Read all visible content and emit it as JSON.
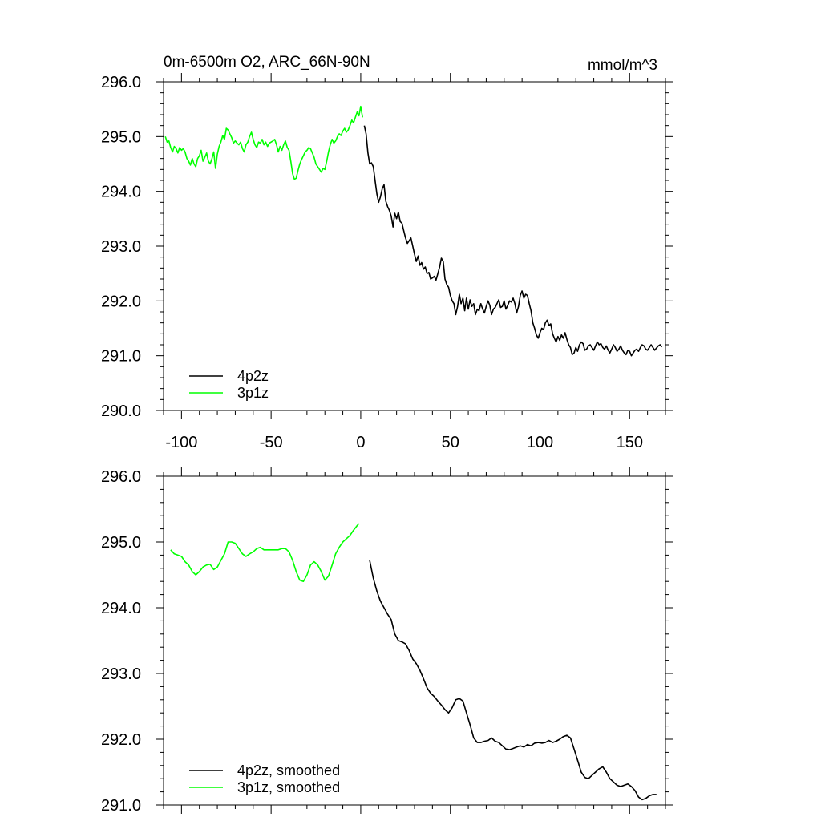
{
  "chart_data": [
    {
      "type": "line",
      "title": "0m-6500m O2, ARC_66N-90N",
      "units": "mmol/m^3",
      "xlim": [
        -110,
        170
      ],
      "ylim": [
        290,
        296
      ],
      "xticks": [
        -100,
        -50,
        0,
        50,
        100,
        150
      ],
      "xtick_labels": [
        "-100",
        "-50",
        "0",
        "50",
        "100",
        "150"
      ],
      "yticks": [
        290,
        291,
        292,
        293,
        294,
        295,
        296
      ],
      "ytick_labels": [
        "290.0",
        "291.0",
        "292.0",
        "293.0",
        "294.0",
        "295.0",
        "296.0"
      ],
      "legend": "bottom-left",
      "grid": false,
      "series": [
        {
          "name": "4p2z",
          "color": "#000000",
          "x": [
            2,
            3,
            4,
            5,
            6,
            7,
            8,
            9,
            10,
            11,
            12,
            13,
            14,
            15,
            16,
            17,
            18,
            19,
            20,
            21,
            22,
            23,
            24,
            25,
            26,
            27,
            28,
            29,
            30,
            31,
            32,
            33,
            34,
            35,
            36,
            37,
            38,
            39,
            40,
            41,
            42,
            43,
            44,
            45,
            46,
            47,
            48,
            49,
            50,
            51,
            52,
            53,
            54,
            55,
            56,
            57,
            58,
            59,
            60,
            61,
            62,
            63,
            64,
            65,
            66,
            67,
            68,
            69,
            70,
            71,
            72,
            73,
            74,
            75,
            76,
            77,
            78,
            79,
            80,
            81,
            82,
            83,
            84,
            85,
            86,
            87,
            88,
            89,
            90,
            91,
            92,
            93,
            94,
            95,
            96,
            97,
            98,
            99,
            100,
            101,
            102,
            103,
            104,
            105,
            106,
            107,
            108,
            109,
            110,
            111,
            112,
            113,
            114,
            115,
            116,
            117,
            118,
            119,
            120,
            121,
            122,
            123,
            124,
            125,
            126,
            127,
            128,
            129,
            130,
            131,
            132,
            133,
            134,
            135,
            136,
            137,
            138,
            139,
            140,
            141,
            142,
            143,
            144,
            145,
            146,
            147,
            148,
            149,
            150,
            151,
            152,
            153,
            154,
            155,
            156,
            157,
            158,
            159,
            160,
            161,
            162,
            163,
            164,
            165,
            166,
            167,
            168
          ],
          "values": [
            295.2,
            295.05,
            294.7,
            294.5,
            294.52,
            294.45,
            294.2,
            293.95,
            293.8,
            293.9,
            294.05,
            294.12,
            293.82,
            293.72,
            293.65,
            293.55,
            293.35,
            293.6,
            293.5,
            293.62,
            293.45,
            293.42,
            293.28,
            293.15,
            293.05,
            293.1,
            293.15,
            293.0,
            292.85,
            292.72,
            292.82,
            292.65,
            292.7,
            292.58,
            292.62,
            292.5,
            292.52,
            292.4,
            292.42,
            292.45,
            292.38,
            292.5,
            292.62,
            292.78,
            292.72,
            292.4,
            292.3,
            292.25,
            292.1,
            292.0,
            291.95,
            291.75,
            291.9,
            292.12,
            291.95,
            292.05,
            291.82,
            292.05,
            291.85,
            292.02,
            291.9,
            291.95,
            291.75,
            291.85,
            291.82,
            291.95,
            291.85,
            291.78,
            291.9,
            292.0,
            291.92,
            291.75,
            291.85,
            291.88,
            291.95,
            292.02,
            291.88,
            291.9,
            292.0,
            291.85,
            291.92,
            292.0,
            291.98,
            292.05,
            291.95,
            291.78,
            291.9,
            292.1,
            292.18,
            292.05,
            292.12,
            292.1,
            291.95,
            291.82,
            291.6,
            291.5,
            291.38,
            291.32,
            291.42,
            291.5,
            291.48,
            291.6,
            291.65,
            291.55,
            291.58,
            291.4,
            291.32,
            291.25,
            291.35,
            291.28,
            291.38,
            291.32,
            291.42,
            291.3,
            291.2,
            291.15,
            291.02,
            291.05,
            291.15,
            291.08,
            291.2,
            291.25,
            291.22,
            291.1,
            291.12,
            291.18,
            291.2,
            291.15,
            291.1,
            291.18,
            291.25,
            291.2,
            291.22,
            291.15,
            291.12,
            291.18,
            291.1,
            291.05,
            291.12,
            291.2,
            291.15,
            291.08,
            291.12,
            291.18,
            291.1,
            291.05,
            291.02,
            291.1,
            291.08,
            291.0,
            291.05,
            291.1,
            291.12,
            291.08,
            291.15,
            291.2,
            291.18,
            291.12,
            291.1,
            291.15,
            291.2,
            291.15,
            291.1,
            291.14,
            291.18,
            291.2,
            291.16
          ]
        },
        {
          "name": "3p1z",
          "color": "#00ff00",
          "x": [
            -109,
            -108,
            -107,
            -106,
            -105,
            -104,
            -103,
            -102,
            -101,
            -100,
            -99,
            -98,
            -97,
            -96,
            -95,
            -94,
            -93,
            -92,
            -91,
            -90,
            -89,
            -88,
            -87,
            -86,
            -85,
            -84,
            -83,
            -82,
            -81,
            -80,
            -79,
            -78,
            -77,
            -76,
            -75,
            -74,
            -73,
            -72,
            -71,
            -70,
            -69,
            -68,
            -67,
            -66,
            -65,
            -64,
            -63,
            -62,
            -61,
            -60,
            -59,
            -58,
            -57,
            -56,
            -55,
            -54,
            -53,
            -52,
            -51,
            -50,
            -49,
            -48,
            -47,
            -46,
            -45,
            -44,
            -43,
            -42,
            -41,
            -40,
            -39,
            -38,
            -37,
            -36,
            -35,
            -34,
            -33,
            -32,
            -31,
            -30,
            -29,
            -28,
            -27,
            -26,
            -25,
            -24,
            -23,
            -22,
            -21,
            -20,
            -19,
            -18,
            -17,
            -16,
            -15,
            -14,
            -13,
            -12,
            -11,
            -10,
            -9,
            -8,
            -7,
            -6,
            -5,
            -4,
            -3,
            -2,
            -1,
            0,
            1
          ],
          "values": [
            295.0,
            294.9,
            294.92,
            294.8,
            294.72,
            294.82,
            294.78,
            294.7,
            294.8,
            294.75,
            294.78,
            294.72,
            294.6,
            294.55,
            294.48,
            294.6,
            294.5,
            294.45,
            294.6,
            294.65,
            294.75,
            294.55,
            294.62,
            294.7,
            294.55,
            294.5,
            294.6,
            294.72,
            294.42,
            294.68,
            294.82,
            294.9,
            295.02,
            294.95,
            295.15,
            295.12,
            295.05,
            294.98,
            294.88,
            294.92,
            294.88,
            294.85,
            294.9,
            294.78,
            294.72,
            294.85,
            294.9,
            295.0,
            295.08,
            294.95,
            294.85,
            294.8,
            294.9,
            294.88,
            294.95,
            294.85,
            294.9,
            294.82,
            294.88,
            294.9,
            294.92,
            294.95,
            294.85,
            294.72,
            294.82,
            294.75,
            294.85,
            294.92,
            294.8,
            294.75,
            294.55,
            294.32,
            294.22,
            294.24,
            294.38,
            294.5,
            294.58,
            294.65,
            294.72,
            294.75,
            294.8,
            294.78,
            294.7,
            294.62,
            294.5,
            294.45,
            294.4,
            294.35,
            294.42,
            294.4,
            294.55,
            294.72,
            294.85,
            294.95,
            294.88,
            294.92,
            295.0,
            295.05,
            295.02,
            295.1,
            295.15,
            295.08,
            295.12,
            295.2,
            295.3,
            295.25,
            295.35,
            295.45,
            295.38,
            295.55,
            295.35
          ]
        }
      ]
    },
    {
      "type": "line",
      "ylim": [
        291,
        296
      ],
      "xlim": [
        -110,
        170
      ],
      "yticks": [
        291,
        292,
        293,
        294,
        295,
        296
      ],
      "ytick_labels": [
        "291.0",
        "292.0",
        "293.0",
        "294.0",
        "295.0",
        "296.0"
      ],
      "legend": "bottom-left",
      "grid": false,
      "series": [
        {
          "name": "4p2z, smoothed",
          "color": "#000000",
          "x": [
            5,
            7,
            9,
            11,
            13,
            15,
            17,
            19,
            21,
            23,
            25,
            27,
            29,
            31,
            33,
            35,
            37,
            39,
            41,
            43,
            45,
            47,
            49,
            51,
            53,
            55,
            57,
            59,
            61,
            63,
            65,
            67,
            69,
            71,
            73,
            75,
            77,
            79,
            81,
            83,
            85,
            87,
            89,
            91,
            93,
            95,
            97,
            99,
            101,
            103,
            105,
            107,
            109,
            111,
            113,
            115,
            117,
            119,
            121,
            123,
            125,
            127,
            129,
            131,
            133,
            135,
            137,
            139,
            141,
            143,
            145,
            147,
            149,
            151,
            153,
            155,
            157,
            159,
            161,
            163,
            165
          ],
          "values": [
            294.72,
            294.45,
            294.25,
            294.1,
            294.0,
            293.9,
            293.82,
            293.6,
            293.5,
            293.48,
            293.45,
            293.35,
            293.22,
            293.15,
            293.05,
            292.92,
            292.78,
            292.7,
            292.65,
            292.58,
            292.52,
            292.45,
            292.4,
            292.48,
            292.6,
            292.62,
            292.58,
            292.4,
            292.22,
            292.02,
            291.95,
            291.95,
            291.97,
            291.98,
            292.02,
            291.97,
            291.95,
            291.9,
            291.85,
            291.84,
            291.86,
            291.88,
            291.9,
            291.88,
            291.92,
            291.9,
            291.94,
            291.95,
            291.94,
            291.95,
            291.98,
            291.95,
            291.97,
            292.0,
            292.04,
            292.06,
            292.02,
            291.85,
            291.68,
            291.5,
            291.42,
            291.4,
            291.45,
            291.5,
            291.55,
            291.58,
            291.5,
            291.4,
            291.35,
            291.3,
            291.28,
            291.3,
            291.32,
            291.28,
            291.22,
            291.12,
            291.08,
            291.1,
            291.14,
            291.16,
            291.16
          ]
        },
        {
          "name": "3p1z, smoothed",
          "color": "#00ff00",
          "x": [
            -106,
            -104,
            -102,
            -100,
            -98,
            -96,
            -94,
            -92,
            -90,
            -88,
            -86,
            -84,
            -82,
            -80,
            -78,
            -76,
            -74,
            -72,
            -70,
            -68,
            -66,
            -64,
            -62,
            -60,
            -58,
            -56,
            -54,
            -52,
            -50,
            -48,
            -46,
            -44,
            -42,
            -40,
            -38,
            -36,
            -34,
            -32,
            -30,
            -28,
            -26,
            -24,
            -22,
            -20,
            -18,
            -16,
            -14,
            -12,
            -10,
            -8,
            -6,
            -4,
            -2,
            -1
          ],
          "values": [
            294.88,
            294.82,
            294.8,
            294.78,
            294.7,
            294.65,
            294.55,
            294.5,
            294.55,
            294.62,
            294.65,
            294.66,
            294.58,
            294.62,
            294.72,
            294.82,
            295.0,
            295.0,
            294.98,
            294.9,
            294.82,
            294.78,
            294.82,
            294.85,
            294.9,
            294.92,
            294.88,
            294.88,
            294.88,
            294.88,
            294.88,
            294.9,
            294.9,
            294.85,
            294.72,
            294.55,
            294.42,
            294.4,
            294.5,
            294.65,
            294.7,
            294.65,
            294.55,
            294.42,
            294.48,
            294.65,
            294.82,
            294.92,
            295.0,
            295.05,
            295.1,
            295.18,
            295.25,
            295.28
          ]
        }
      ]
    }
  ]
}
